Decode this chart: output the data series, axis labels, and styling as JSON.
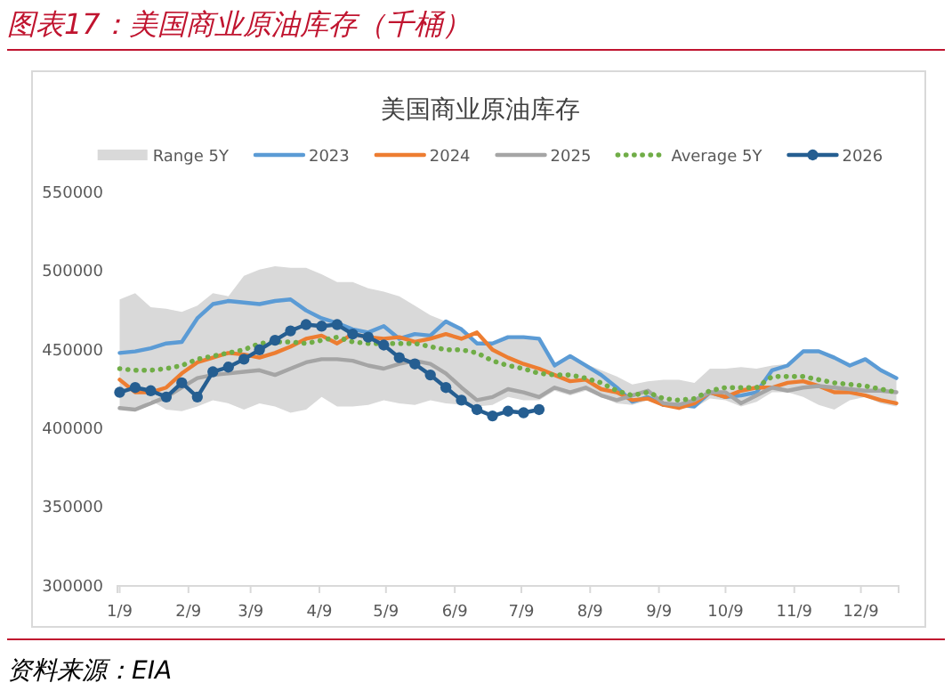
{
  "chart_data": {
    "type": "line",
    "title": "图表17：美国商业原油库存（千桶）",
    "subtitle": "美国商业原油库存",
    "annotations": [
      "资料来源：EIA"
    ],
    "x": [
      "--01-09",
      "--01-16",
      "--01-23",
      "--01-30",
      "--02-06",
      "--02-13",
      "--02-20",
      "--02-27",
      "--03-06",
      "--03-13",
      "--03-20",
      "--03-27",
      "--04-03",
      "--04-10",
      "--04-17",
      "--04-24",
      "--05-01",
      "--05-08",
      "--05-15",
      "--05-22",
      "--05-29",
      "--06-05",
      "--06-12",
      "--06-19",
      "--06-26",
      "--07-03",
      "--07-10",
      "--07-17",
      "--07-24",
      "--07-31",
      "--08-07",
      "--08-14",
      "--08-21",
      "--08-28",
      "--09-04",
      "--09-11",
      "--09-18",
      "--09-25",
      "--10-02",
      "--10-09",
      "--10-16",
      "--10-23",
      "--10-30",
      "--11-06",
      "--11-13",
      "--11-20",
      "--11-27",
      "--12-04",
      "--12-11",
      "--12-18",
      "--12-25"
    ],
    "xlim": [
      "--01-08",
      "--12-26"
    ],
    "xticks": [
      {
        "value": "--01-09",
        "label": "1/9"
      },
      {
        "value": "--02-09",
        "label": "2/9"
      },
      {
        "value": "--03-09",
        "label": "3/9"
      },
      {
        "value": "--04-09",
        "label": "4/9"
      },
      {
        "value": "--05-09",
        "label": "5/9"
      },
      {
        "value": "--06-09",
        "label": "6/9"
      },
      {
        "value": "--07-09",
        "label": "7/9"
      },
      {
        "value": "--08-09",
        "label": "8/9"
      },
      {
        "value": "--09-09",
        "label": "9/9"
      },
      {
        "value": "--10-09",
        "label": "10/9"
      },
      {
        "value": "--11-09",
        "label": "11/9"
      },
      {
        "value": "--12-09",
        "label": "12/9"
      }
    ],
    "ylim": [
      300000,
      550000
    ],
    "yticks": [
      300000,
      350000,
      400000,
      450000,
      500000,
      550000
    ],
    "legend": "top",
    "series": [
      {
        "name": "Range 5Y",
        "type": "area",
        "color": "#d9d9d9",
        "lower": [
          412000,
          412000,
          418000,
          412000,
          411000,
          414000,
          418000,
          416000,
          412000,
          416000,
          414000,
          410000,
          412000,
          420000,
          414000,
          414000,
          415000,
          418000,
          416000,
          415000,
          418000,
          416000,
          415000,
          414000,
          415000,
          420000,
          418000,
          418000,
          424000,
          421000,
          424000,
          420000,
          416000,
          415000,
          418000,
          414000,
          413000,
          413000,
          419000,
          418000,
          414000,
          417000,
          423000,
          423000,
          420000,
          415000,
          412000,
          418000,
          420000,
          416000,
          414000
        ],
        "values": [
          null,
          null,
          null,
          null,
          null,
          null,
          null,
          null,
          null,
          null,
          null,
          null,
          null,
          null,
          null,
          null,
          null,
          null,
          null,
          null,
          null,
          null,
          null,
          null,
          null,
          null,
          null,
          null,
          null,
          null,
          null,
          null,
          null,
          null,
          null,
          null,
          null,
          null,
          null,
          null,
          null,
          null,
          null,
          null,
          null,
          null,
          null,
          null,
          null,
          null,
          null
        ],
        "upper": [
          482000,
          486000,
          477000,
          476000,
          474000,
          478000,
          486000,
          484000,
          497000,
          501000,
          503000,
          502000,
          502000,
          498000,
          493000,
          493000,
          489000,
          487000,
          484000,
          478000,
          472000,
          468000,
          463000,
          455000,
          454000,
          459000,
          458000,
          457000,
          441000,
          447000,
          441000,
          437000,
          433000,
          428000,
          430000,
          431000,
          431000,
          429000,
          438000,
          438000,
          439000,
          438000,
          440000,
          441000,
          449000,
          449000,
          445000,
          441000,
          444000,
          438000,
          433000
        ]
      },
      {
        "name": "2023",
        "color": "#5b9bd5",
        "values": [
          448000,
          449000,
          451000,
          454000,
          455000,
          470000,
          479000,
          481000,
          480000,
          479000,
          481000,
          482000,
          475000,
          470000,
          467000,
          463000,
          461000,
          465000,
          457000,
          460000,
          459000,
          468000,
          463000,
          454000,
          454000,
          458000,
          458000,
          457000,
          440000,
          446000,
          440000,
          434000,
          426000,
          417000,
          420000,
          415000,
          415000,
          414000,
          423000,
          420000,
          421000,
          423000,
          437000,
          440000,
          449000,
          449000,
          445000,
          440000,
          444000,
          437000,
          432000
        ]
      },
      {
        "name": "2024",
        "color": "#ed7d31",
        "values": [
          431000,
          423000,
          423000,
          426000,
          435000,
          442000,
          445000,
          448000,
          447000,
          445000,
          448000,
          452000,
          457000,
          459000,
          454000,
          460000,
          458000,
          457000,
          458000,
          455000,
          457000,
          460000,
          457000,
          461000,
          450000,
          445000,
          441000,
          438000,
          434000,
          430000,
          431000,
          425000,
          423000,
          418000,
          419000,
          415000,
          413000,
          416000,
          423000,
          420000,
          424000,
          426000,
          426000,
          429000,
          430000,
          427000,
          423000,
          423000,
          421000,
          418000,
          416000
        ]
      },
      {
        "name": "2025",
        "color": "#a5a5a5",
        "values": [
          413000,
          412000,
          416000,
          420000,
          426000,
          432000,
          434000,
          435000,
          436000,
          437000,
          434000,
          438000,
          442000,
          444000,
          444000,
          443000,
          440000,
          438000,
          441000,
          443000,
          441000,
          435000,
          426000,
          418000,
          420000,
          425000,
          423000,
          420000,
          426000,
          423000,
          426000,
          421000,
          418000,
          421000,
          424000,
          416000,
          415000,
          418000,
          423000,
          423000,
          416000,
          421000,
          426000,
          424000,
          426000,
          427000,
          426000,
          425000,
          424000,
          424000,
          423000
        ]
      },
      {
        "name": "Average 5Y",
        "color": "#70ad47",
        "line_style": "dotted",
        "values": [
          438000,
          437000,
          437000,
          438000,
          440000,
          444000,
          446000,
          448000,
          450000,
          454000,
          455000,
          455000,
          454000,
          456000,
          458000,
          455000,
          454000,
          454000,
          454000,
          454000,
          452000,
          450000,
          450000,
          448000,
          443000,
          440000,
          438000,
          435000,
          434000,
          434000,
          432000,
          429000,
          424000,
          421000,
          423000,
          419000,
          418000,
          419000,
          424000,
          426000,
          426000,
          426000,
          433000,
          433000,
          433000,
          431000,
          429000,
          428000,
          427000,
          425000,
          423000
        ]
      },
      {
        "name": "2026",
        "color": "#255e91",
        "marker": "circle",
        "values": [
          423000,
          426000,
          424000,
          420000,
          429000,
          420000,
          436000,
          439000,
          444000,
          450000,
          456000,
          462000,
          466000,
          465000,
          466000,
          460000,
          458000,
          453000,
          445000,
          441000,
          434000,
          426000,
          418000,
          412000,
          408000,
          411000,
          410000,
          412000,
          null,
          null,
          null,
          null,
          null,
          null,
          null,
          null,
          null,
          null,
          null,
          null,
          null,
          null,
          null,
          null,
          null,
          null,
          null,
          null,
          null,
          null,
          null
        ]
      }
    ]
  }
}
